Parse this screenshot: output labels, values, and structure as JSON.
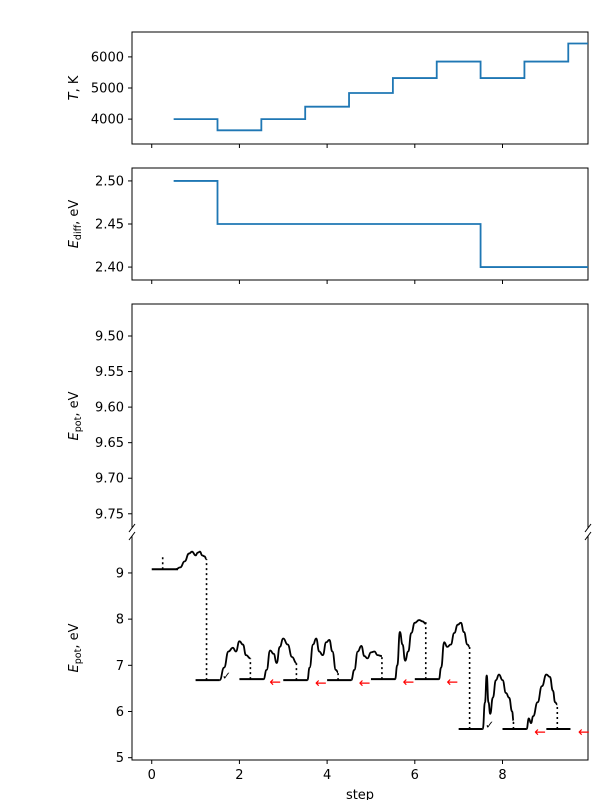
{
  "chart_data": [
    {
      "type": "line",
      "drawstyle": "step",
      "panel": "temperature",
      "ylabel_main": "T",
      "ylabel_unit": ", K",
      "xlim": [
        -0.45,
        9.95
      ],
      "ylim": [
        3200,
        6800
      ],
      "yticks": [
        4000,
        5000,
        6000
      ],
      "ytick_labels": [
        "4000",
        "5000",
        "6000"
      ],
      "color": "#1f77b4",
      "x": [
        0.5,
        1.5,
        2.5,
        3.5,
        4.5,
        5.5,
        6.5,
        7.5,
        8.5,
        9.5
      ],
      "values": [
        4000,
        3640,
        4000,
        4400,
        4840,
        5320,
        5850,
        5320,
        5850,
        6430
      ]
    },
    {
      "type": "line",
      "drawstyle": "step",
      "panel": "diffusion",
      "ylabel_main": "E",
      "ylabel_sub": "diff",
      "ylabel_unit": ", eV",
      "xlim": [
        -0.45,
        9.95
      ],
      "ylim": [
        2.385,
        2.515
      ],
      "yticks": [
        2.4,
        2.45,
        2.5
      ],
      "ytick_labels": [
        "2.40",
        "2.45",
        "2.50"
      ],
      "color": "#1f77b4",
      "x": [
        0.5,
        1.5,
        7.5,
        9.95
      ],
      "values": [
        2.5,
        2.45,
        2.4,
        2.4
      ]
    },
    {
      "type": "line",
      "panel": "energy-upper",
      "inverted": true,
      "ylabel_main": "E",
      "ylabel_sub": "pot",
      "ylabel_unit": ", eV",
      "xlim": [
        -0.45,
        9.95
      ],
      "ylim": [
        9.455,
        9.77
      ],
      "yticks": [
        9.5,
        9.55,
        9.6,
        9.65,
        9.7,
        9.75
      ],
      "ytick_labels": [
        "9.50",
        "9.55",
        "9.60",
        "9.65",
        "9.70",
        "9.75"
      ]
    },
    {
      "type": "line",
      "panel": "energy-lower",
      "ylabel_main": "E",
      "ylabel_sub": "pot",
      "ylabel_unit": ", eV",
      "xlabel": "step",
      "xlim": [
        -0.45,
        9.95
      ],
      "ylim": [
        4.95,
        9.8
      ],
      "yticks": [
        5,
        6,
        7,
        8,
        9
      ],
      "ytick_labels": [
        "5",
        "6",
        "7",
        "8",
        "9"
      ],
      "xticks": [
        0,
        2,
        4,
        6,
        8
      ],
      "xtick_labels": [
        "0",
        "2",
        "4",
        "6",
        "8"
      ],
      "reject_color": "#ff0000",
      "reject_marker": "←",
      "accept_marker": "✓",
      "levels": [
        {
          "x0": 0.0,
          "x1": 0.6,
          "e": 9.08
        },
        {
          "x0": 1.0,
          "x1": 1.55,
          "e": 6.68
        },
        {
          "x0": 2.0,
          "x1": 2.55,
          "e": 6.7
        },
        {
          "x0": 3.0,
          "x1": 3.55,
          "e": 6.68
        },
        {
          "x0": 4.0,
          "x1": 4.55,
          "e": 6.68
        },
        {
          "x0": 5.0,
          "x1": 5.55,
          "e": 6.7
        },
        {
          "x0": 6.0,
          "x1": 6.55,
          "e": 6.7
        },
        {
          "x0": 7.0,
          "x1": 7.55,
          "e": 5.62
        },
        {
          "x0": 8.0,
          "x1": 8.55,
          "e": 5.62
        },
        {
          "x0": 9.0,
          "x1": 9.55,
          "e": 5.62
        }
      ],
      "dotted": [
        {
          "x": 0.25,
          "y0": 9.08,
          "y1": 9.35
        },
        {
          "x": 1.25,
          "y0": 6.68,
          "y1": 9.3
        },
        {
          "x": 2.25,
          "y0": 6.7,
          "y1": 7.15
        },
        {
          "x": 3.3,
          "y0": 6.68,
          "y1": 7.05
        },
        {
          "x": 4.25,
          "y0": 6.68,
          "y1": 6.85
        },
        {
          "x": 5.25,
          "y0": 6.7,
          "y1": 7.2
        },
        {
          "x": 6.25,
          "y0": 6.7,
          "y1": 7.95
        },
        {
          "x": 7.25,
          "y0": 5.62,
          "y1": 7.4
        },
        {
          "x": 8.25,
          "y0": 5.62,
          "y1": 5.8
        },
        {
          "x": 9.25,
          "y0": 5.62,
          "y1": 6.15
        }
      ],
      "curves": [
        {
          "name": "path-from-state-0",
          "x": [
            0.55,
            0.65,
            0.75,
            0.85,
            0.92,
            1.0,
            1.05,
            1.1,
            1.15,
            1.2,
            1.25
          ],
          "y": [
            9.08,
            9.12,
            9.25,
            9.42,
            9.46,
            9.38,
            9.44,
            9.46,
            9.38,
            9.36,
            9.3
          ]
        },
        {
          "name": "path-from-state-1",
          "x": [
            1.55,
            1.65,
            1.75,
            1.85,
            1.92,
            2.0,
            2.08,
            2.15,
            2.25
          ],
          "y": [
            6.68,
            6.95,
            7.3,
            7.38,
            7.3,
            7.52,
            7.45,
            7.22,
            7.15
          ]
        },
        {
          "name": "path-from-state-2",
          "x": [
            2.55,
            2.62,
            2.7,
            2.78,
            2.85,
            2.92,
            3.0,
            3.1,
            3.2,
            3.3
          ],
          "y": [
            6.7,
            6.9,
            7.32,
            7.25,
            7.05,
            7.4,
            7.58,
            7.45,
            7.18,
            7.05
          ]
        },
        {
          "name": "path-from-state-3",
          "x": [
            3.55,
            3.6,
            3.68,
            3.75,
            3.82,
            3.9,
            3.98,
            4.05,
            4.12,
            4.2,
            4.25
          ],
          "y": [
            6.68,
            6.95,
            7.45,
            7.58,
            7.3,
            7.22,
            7.5,
            7.55,
            7.3,
            6.9,
            6.85
          ]
        },
        {
          "name": "path-from-state-4",
          "x": [
            4.55,
            4.62,
            4.7,
            4.78,
            4.85,
            4.92,
            5.0,
            5.08,
            5.15,
            5.25
          ],
          "y": [
            6.68,
            6.9,
            7.3,
            7.42,
            7.2,
            7.15,
            7.28,
            7.3,
            7.22,
            7.2
          ]
        },
        {
          "name": "path-from-state-5",
          "x": [
            5.55,
            5.6,
            5.66,
            5.72,
            5.78,
            5.85,
            5.92,
            6.0,
            6.1,
            6.18,
            6.25
          ],
          "y": [
            6.7,
            7.0,
            7.72,
            7.45,
            7.1,
            7.3,
            7.7,
            7.92,
            7.98,
            7.95,
            7.9
          ]
        },
        {
          "name": "path-from-state-6",
          "x": [
            6.55,
            6.6,
            6.67,
            6.74,
            6.82,
            6.9,
            6.98,
            7.05,
            7.12,
            7.2,
            7.25
          ],
          "y": [
            6.7,
            6.95,
            7.5,
            7.4,
            7.45,
            7.7,
            7.88,
            7.92,
            7.72,
            7.45,
            7.4
          ]
        },
        {
          "name": "path-from-state-7",
          "x": [
            7.55,
            7.6,
            7.64,
            7.68,
            7.72,
            7.78,
            7.85,
            7.92,
            8.0,
            8.08,
            8.15,
            8.22,
            8.25
          ],
          "y": [
            5.62,
            6.2,
            6.78,
            6.2,
            5.95,
            6.3,
            6.68,
            6.8,
            6.68,
            6.4,
            6.3,
            6.0,
            5.8
          ]
        },
        {
          "name": "path-from-state-8",
          "x": [
            8.55,
            8.6,
            8.65,
            8.7,
            8.8,
            8.9,
            9.0,
            9.08,
            9.15,
            9.2,
            9.25
          ],
          "y": [
            5.62,
            5.85,
            5.75,
            5.9,
            6.2,
            6.55,
            6.8,
            6.75,
            6.45,
            6.2,
            6.15
          ]
        }
      ],
      "markers": [
        {
          "kind": "accept",
          "x": 1.6,
          "y": 6.78
        },
        {
          "kind": "reject",
          "x": 2.68,
          "y": 6.65
        },
        {
          "kind": "reject",
          "x": 3.72,
          "y": 6.63
        },
        {
          "kind": "reject",
          "x": 4.72,
          "y": 6.63
        },
        {
          "kind": "reject",
          "x": 5.72,
          "y": 6.65
        },
        {
          "kind": "reject",
          "x": 6.72,
          "y": 6.65
        },
        {
          "kind": "accept",
          "x": 7.6,
          "y": 5.72
        },
        {
          "kind": "reject",
          "x": 8.72,
          "y": 5.57
        },
        {
          "kind": "reject",
          "x": 9.72,
          "y": 5.57
        }
      ]
    }
  ]
}
